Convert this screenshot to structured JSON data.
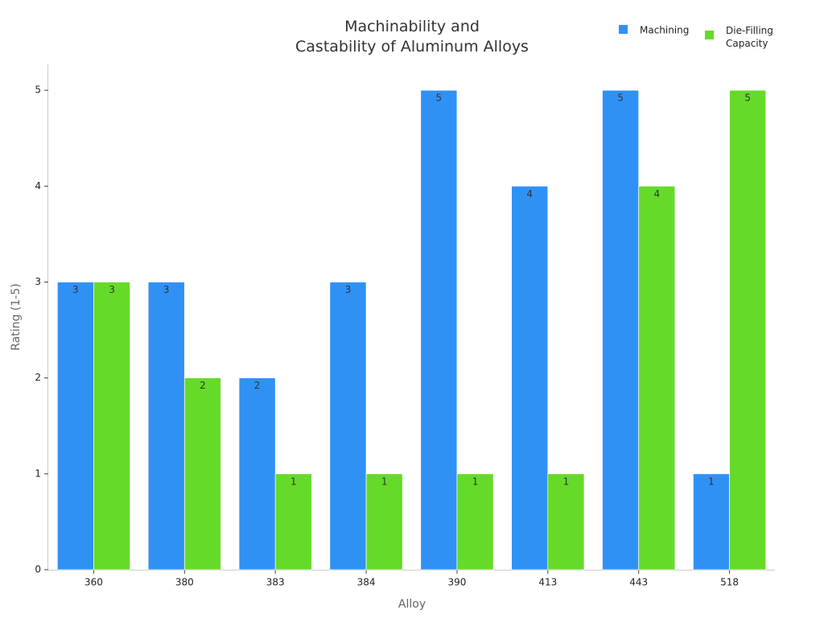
{
  "chart_data": {
    "type": "bar",
    "title": "Machinability and\nCastability of Aluminum Alloys",
    "x_label": "Alloy",
    "y_label": "Rating (1-5)",
    "categories": [
      "360",
      "380",
      "383",
      "384",
      "390",
      "413",
      "443",
      "518"
    ],
    "series": [
      {
        "name": "Machining",
        "color": "#3091f5",
        "values": [
          3,
          3,
          2,
          3,
          5,
          4,
          5,
          1
        ]
      },
      {
        "name": "Die-Filling Capacity",
        "color": "#66da28",
        "values": [
          3,
          2,
          1,
          1,
          1,
          1,
          4,
          5
        ]
      }
    ],
    "ylim": [
      0,
      5.27
    ],
    "yticks": [
      0,
      1,
      2,
      3,
      4,
      5
    ],
    "grid": false,
    "legend": "upper right"
  }
}
